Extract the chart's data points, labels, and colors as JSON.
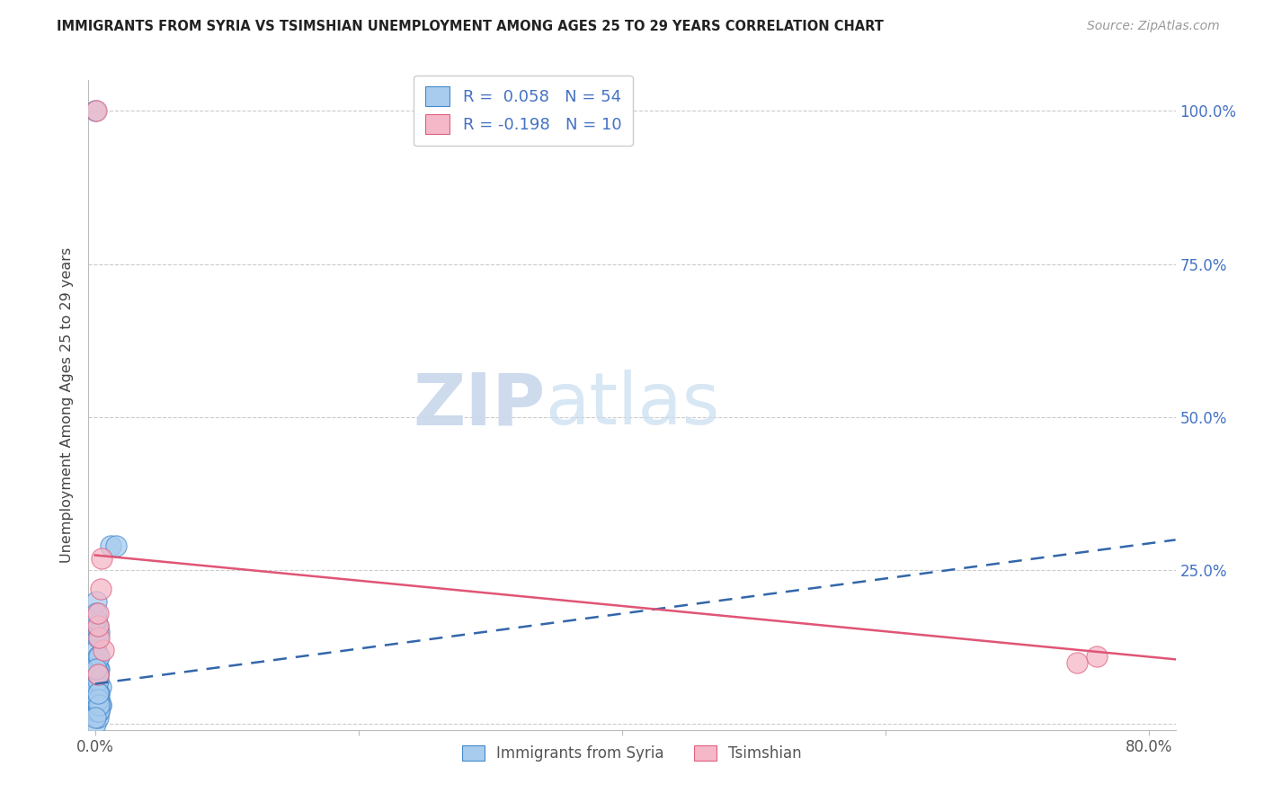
{
  "title": "IMMIGRANTS FROM SYRIA VS TSIMSHIAN UNEMPLOYMENT AMONG AGES 25 TO 29 YEARS CORRELATION CHART",
  "source": "Source: ZipAtlas.com",
  "ylabel": "Unemployment Among Ages 25 to 29 years",
  "xlabel_blue": "Immigrants from Syria",
  "xlabel_pink": "Tsimshian",
  "xlim": [
    -0.005,
    0.82
  ],
  "ylim": [
    -0.01,
    1.05
  ],
  "xtick_positions": [
    0.0,
    0.2,
    0.4,
    0.6,
    0.8
  ],
  "xtick_labels": [
    "0.0%",
    "",
    "",
    "",
    "80.0%"
  ],
  "ytick_positions": [
    0.0,
    0.25,
    0.5,
    0.75,
    1.0
  ],
  "ytick_labels_right": [
    "",
    "25.0%",
    "50.0%",
    "75.0%",
    "100.0%"
  ],
  "blue_R": 0.058,
  "blue_N": 54,
  "pink_R": -0.198,
  "pink_N": 10,
  "blue_color": "#a8ccee",
  "pink_color": "#f5b8c8",
  "blue_edge_color": "#4488cc",
  "pink_edge_color": "#e06080",
  "blue_line_color": "#3366aa",
  "pink_line_color": "#e05575",
  "grid_color": "#cccccc",
  "blue_trend_x": [
    0.0,
    0.82
  ],
  "blue_trend_y": [
    0.065,
    0.3
  ],
  "pink_trend_x": [
    0.0,
    0.82
  ],
  "pink_trend_y": [
    0.275,
    0.105
  ],
  "blue_scatter_x": [
    0.0005,
    0.0008,
    0.0015,
    0.002,
    0.003,
    0.0025,
    0.001,
    0.001,
    0.002,
    0.003,
    0.004,
    0.003,
    0.002,
    0.001,
    0.001,
    0.002,
    0.003,
    0.002,
    0.001,
    0.003,
    0.004,
    0.003,
    0.002,
    0.001,
    0.002,
    0.003,
    0.001,
    0.002,
    0.003,
    0.002,
    0.001,
    0.003,
    0.002,
    0.001,
    0.003,
    0.002,
    0.001,
    0.002,
    0.003,
    0.002,
    0.004,
    0.003,
    0.002,
    0.001,
    0.002,
    0.003,
    0.001,
    0.002,
    0.012,
    0.016,
    0.0005,
    0.001,
    0.001,
    0.0005
  ],
  "blue_scatter_y": [
    0.0,
    0.02,
    0.04,
    0.01,
    0.03,
    0.05,
    0.06,
    0.08,
    0.07,
    0.02,
    0.03,
    0.09,
    0.04,
    0.1,
    0.12,
    0.11,
    0.05,
    0.02,
    0.03,
    0.15,
    0.06,
    0.04,
    0.08,
    0.07,
    0.09,
    0.11,
    0.02,
    0.05,
    0.03,
    0.14,
    0.04,
    0.03,
    0.02,
    0.06,
    0.05,
    0.07,
    0.04,
    0.08,
    0.04,
    0.16,
    0.03,
    0.02,
    0.08,
    0.09,
    0.04,
    0.03,
    0.17,
    0.05,
    0.29,
    0.29,
    1.0,
    0.2,
    0.18,
    0.01
  ],
  "pink_scatter_x": [
    0.001,
    0.004,
    0.005,
    0.006,
    0.003,
    0.002,
    0.745,
    0.76,
    0.002,
    0.002
  ],
  "pink_scatter_y": [
    1.0,
    0.22,
    0.27,
    0.12,
    0.14,
    0.08,
    0.1,
    0.11,
    0.16,
    0.18
  ]
}
